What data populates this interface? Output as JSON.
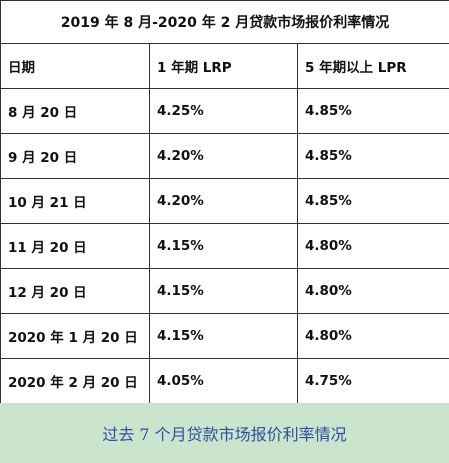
{
  "table": {
    "title": "2019 年 8 月-2020 年 2 月贷款市场报价利率情况",
    "headers": [
      "日期",
      "1 年期 LRP",
      "5 年期以上 LPR"
    ],
    "rows": [
      [
        "8 月 20 日",
        "4.25%",
        "4.85%"
      ],
      [
        "9 月 20 日",
        "4.20%",
        "4.85%"
      ],
      [
        "10 月 21 日",
        "4.20%",
        "4.85%"
      ],
      [
        "11 月 20 日",
        "4.15%",
        "4.80%"
      ],
      [
        "12 月 20 日",
        "4.15%",
        "4.80%"
      ],
      [
        "2020 年 1 月 20 日",
        "4.15%",
        "4.80%"
      ],
      [
        "2020 年 2 月 20 日",
        "4.05%",
        "4.75%"
      ]
    ]
  },
  "caption": "过去 7 个月贷款市场报价利率情况"
}
